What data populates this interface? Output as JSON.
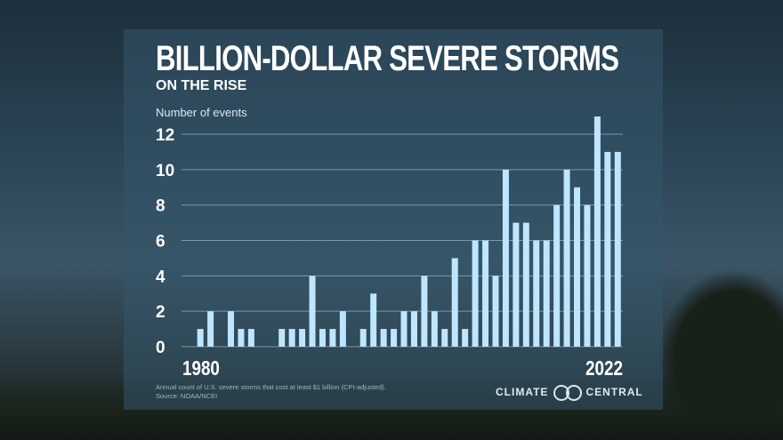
{
  "chart_data": {
    "type": "bar",
    "title": "BILLION-DOLLAR SEVERE STORMS",
    "subtitle": "ON THE RISE",
    "ylabel": "Number of events",
    "xlabel": "",
    "x_tick_labels": [
      "1980",
      "2022"
    ],
    "y_ticks": [
      0,
      2,
      4,
      6,
      8,
      10,
      12
    ],
    "ylim": [
      0,
      13
    ],
    "grid": true,
    "categories": [
      1980,
      1981,
      1982,
      1983,
      1984,
      1985,
      1986,
      1987,
      1988,
      1989,
      1990,
      1991,
      1992,
      1993,
      1994,
      1995,
      1996,
      1997,
      1998,
      1999,
      2000,
      2001,
      2002,
      2003,
      2004,
      2005,
      2006,
      2007,
      2008,
      2009,
      2010,
      2011,
      2012,
      2013,
      2014,
      2015,
      2016,
      2017,
      2018,
      2019,
      2020,
      2021,
      2022
    ],
    "values": [
      0,
      1,
      2,
      0,
      2,
      1,
      1,
      0,
      0,
      1,
      1,
      1,
      4,
      1,
      1,
      2,
      0,
      1,
      3,
      1,
      1,
      2,
      2,
      4,
      2,
      1,
      5,
      1,
      6,
      6,
      4,
      10,
      7,
      7,
      6,
      6,
      8,
      10,
      9,
      8,
      13,
      11,
      11
    ],
    "bar_color": "#bfe6ff"
  },
  "footnote": {
    "line1": "Annual count of U.S. severe storms that cost at least $1 billion (CPI-adjusted).",
    "line2": "Source: NOAA/NCEI"
  },
  "logo": {
    "left": "CLIMATE",
    "right": "CENTRAL"
  }
}
